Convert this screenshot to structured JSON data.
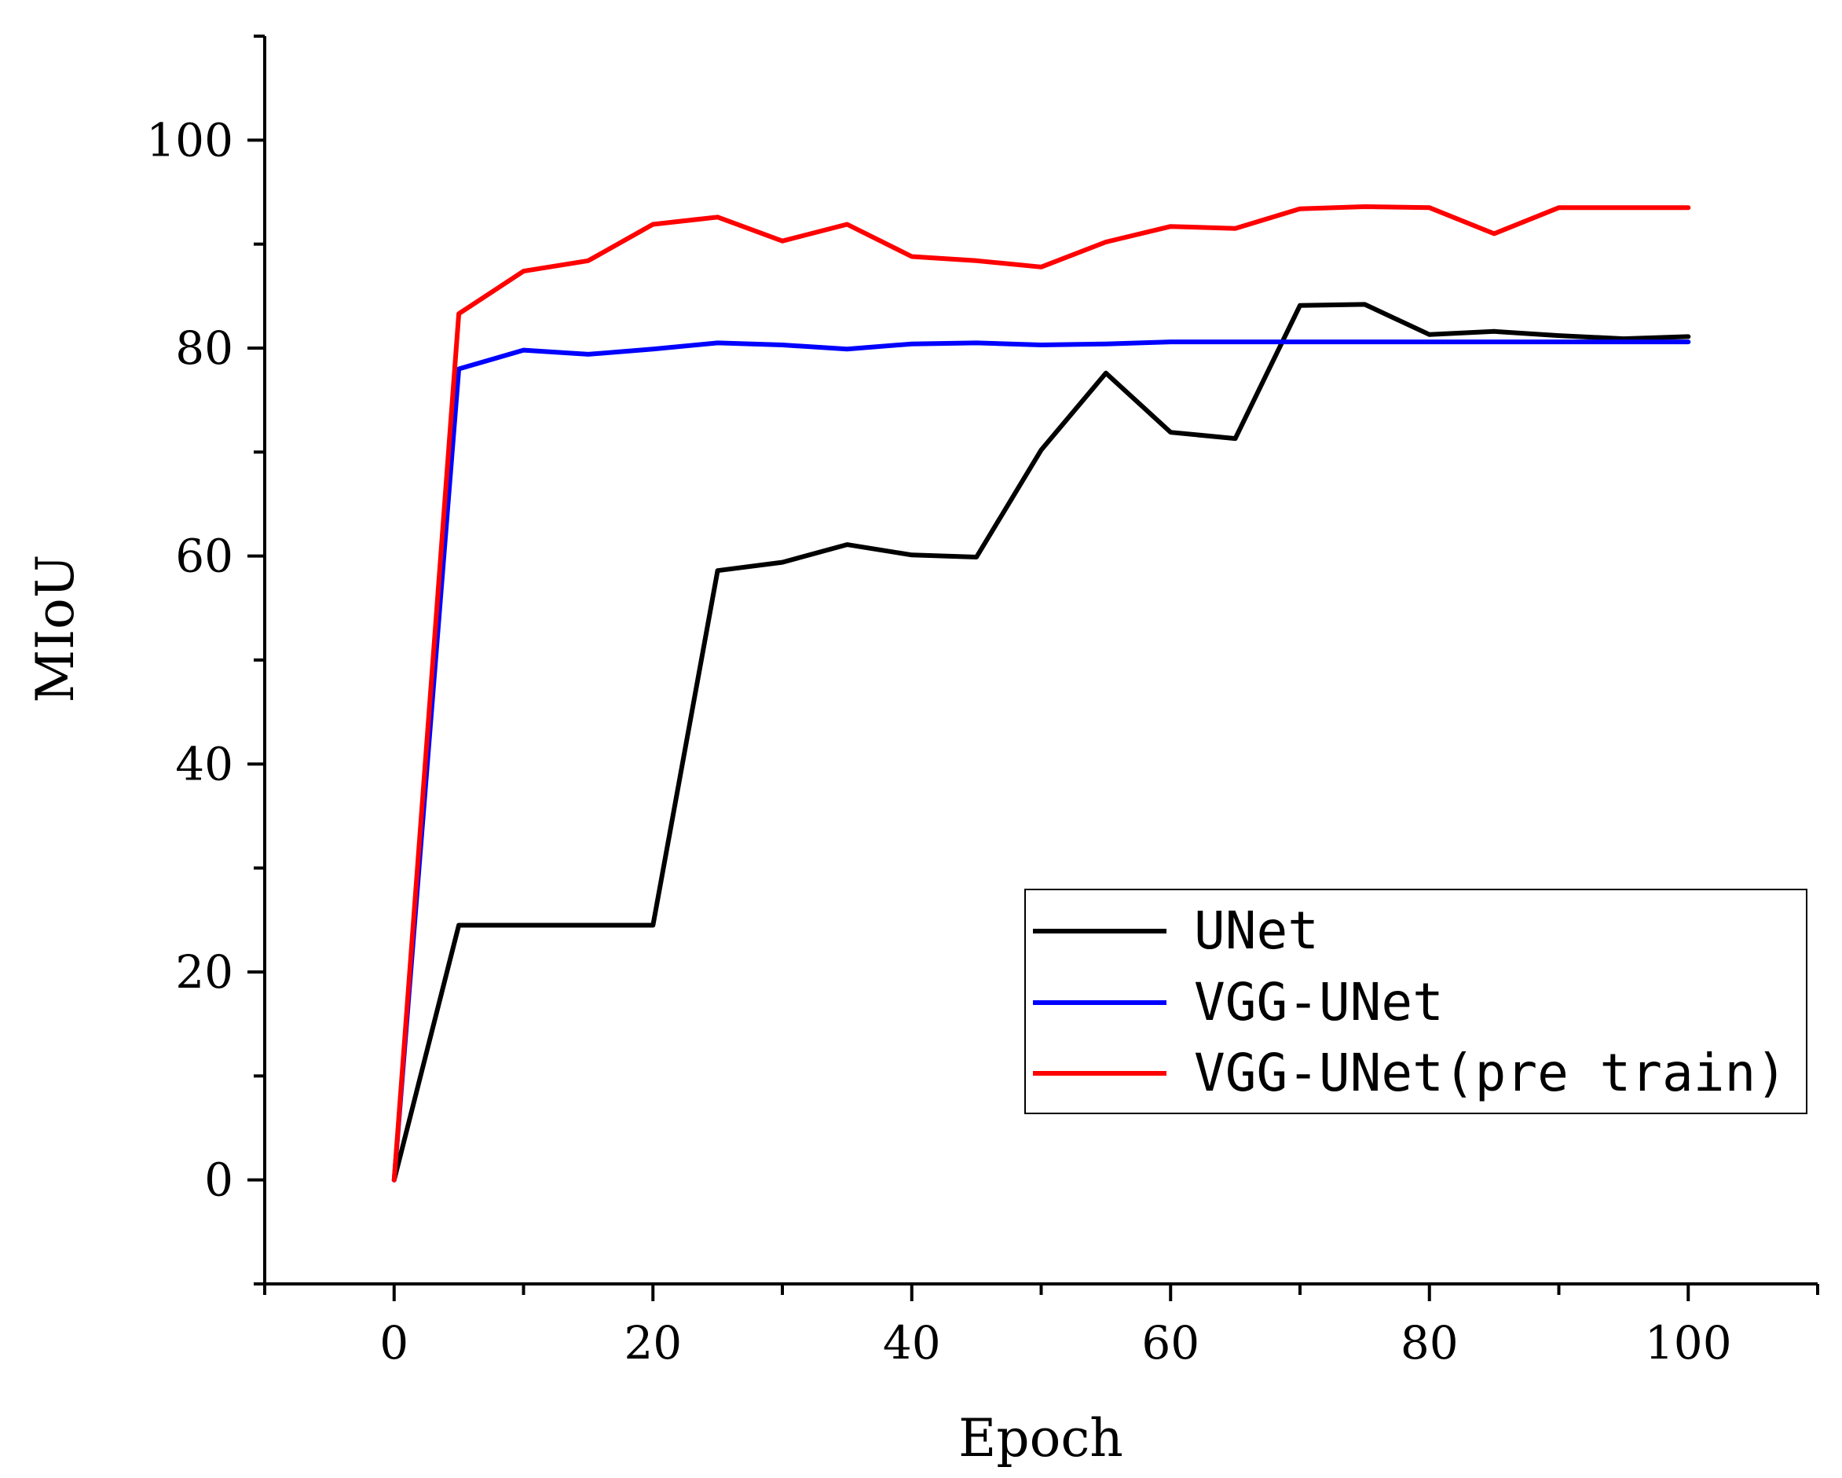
{
  "chart_data": {
    "type": "line",
    "xlabel": "Epoch",
    "ylabel": "MIoU",
    "xlim": [
      -10,
      110
    ],
    "ylim": [
      -10,
      110
    ],
    "x_ticks": [
      0,
      20,
      40,
      60,
      80,
      100
    ],
    "y_ticks": [
      0,
      20,
      40,
      60,
      80,
      100
    ],
    "x_minor_step": 10,
    "y_minor_step": 10,
    "grid": false,
    "legend_position": "bottom-right",
    "series": [
      {
        "name": "UNet",
        "color": "#000000",
        "x": [
          0,
          5,
          10,
          15,
          20,
          25,
          30,
          35,
          40,
          45,
          50,
          55,
          60,
          65,
          70,
          75,
          80,
          85,
          90,
          95,
          100
        ],
        "y": [
          0,
          24.5,
          24.5,
          24.5,
          24.5,
          58.6,
          59.4,
          61.1,
          60.1,
          59.9,
          70.2,
          77.6,
          71.9,
          71.3,
          84.1,
          84.2,
          81.3,
          81.6,
          81.2,
          80.9,
          81.1
        ]
      },
      {
        "name": "VGG-UNet",
        "color": "#0000ff",
        "x": [
          0,
          5,
          10,
          15,
          20,
          25,
          30,
          35,
          40,
          45,
          50,
          55,
          60,
          65,
          70,
          75,
          80,
          85,
          90,
          95,
          100
        ],
        "y": [
          0,
          78.0,
          79.8,
          79.4,
          79.9,
          80.5,
          80.3,
          79.9,
          80.4,
          80.5,
          80.3,
          80.4,
          80.6,
          80.6,
          80.6,
          80.6,
          80.6,
          80.6,
          80.6,
          80.6,
          80.6
        ]
      },
      {
        "name": "VGG-UNet(pre train)",
        "color": "#ff0000",
        "x": [
          0,
          5,
          10,
          15,
          20,
          25,
          30,
          35,
          40,
          45,
          50,
          55,
          60,
          65,
          70,
          75,
          80,
          85,
          90,
          95,
          100
        ],
        "y": [
          0,
          83.3,
          87.4,
          88.4,
          91.9,
          92.6,
          90.3,
          91.9,
          88.8,
          88.4,
          87.8,
          90.2,
          91.7,
          91.5,
          93.4,
          93.6,
          93.5,
          91.0,
          93.5,
          93.5,
          93.5
        ]
      }
    ]
  }
}
